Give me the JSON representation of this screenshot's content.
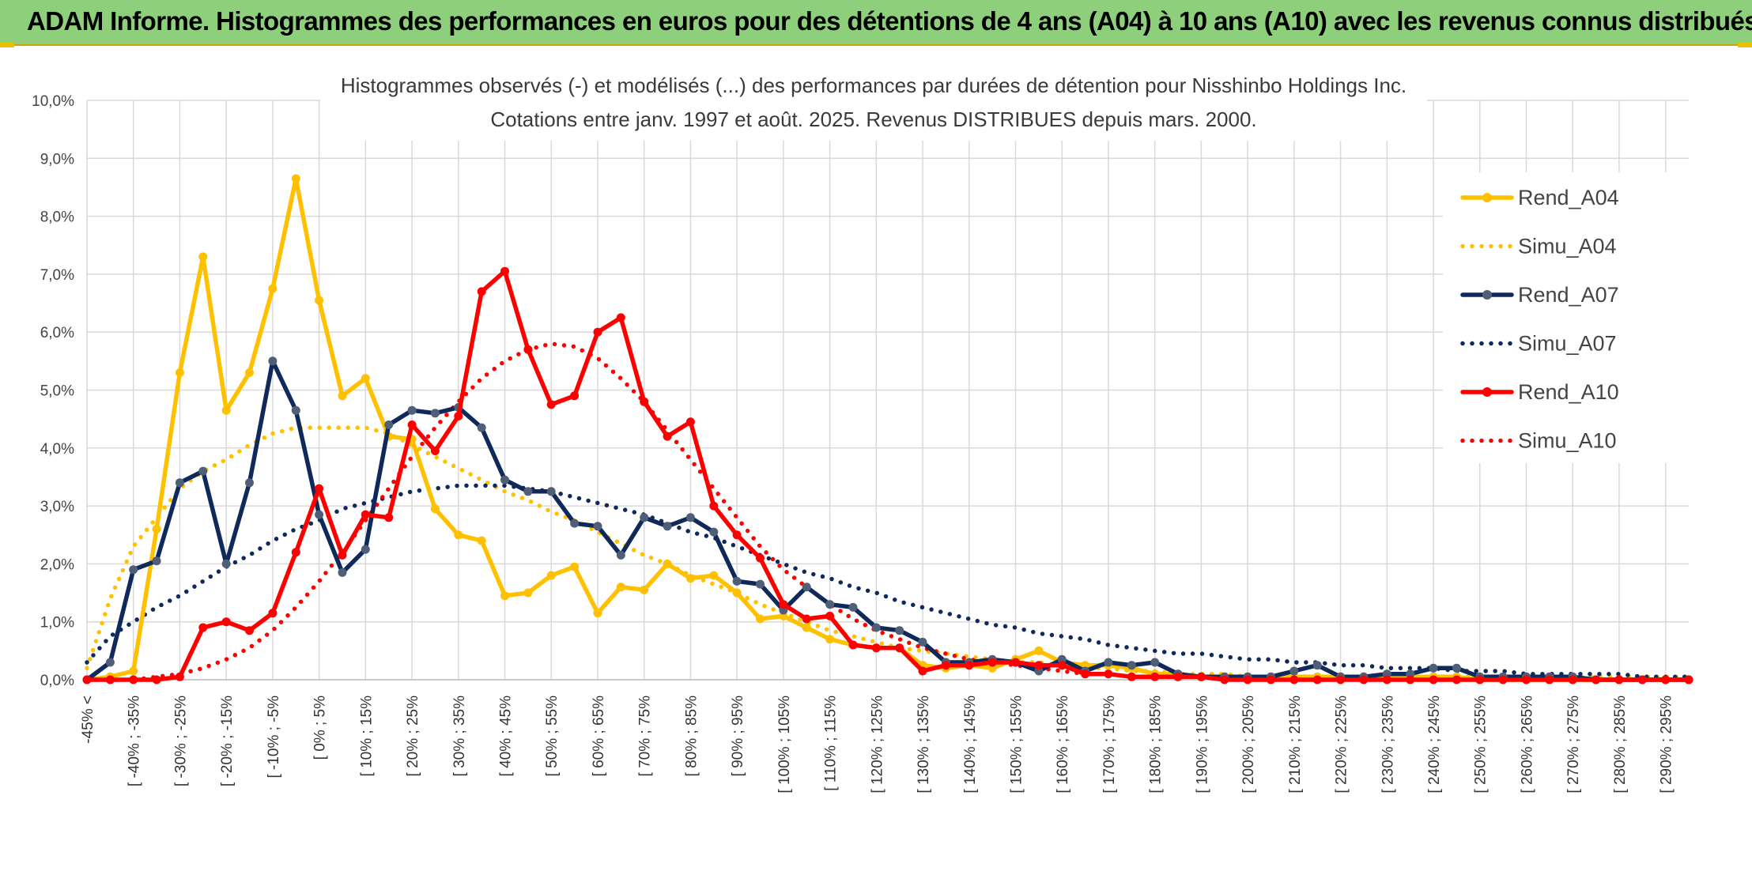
{
  "header": {
    "title": "ADAM Informe. Histogrammes des performances en euros pour des détentions de 4 ans (A04) à 10 ans (A10) avec les revenus connus distribués"
  },
  "colors": {
    "header_bg": "#8dcf7a",
    "rend_a04": "#ffc000",
    "rend_a07": "#0f2a5a",
    "rend_a07_marker": "#4f5f78",
    "rend_a10": "#ff0000",
    "grid": "#d9d9d9"
  },
  "chart_data": {
    "type": "line",
    "title": "Histogrammes observés (-) et modélisés (...) des performances par durées de détention pour Nisshinbo Holdings Inc.",
    "subtitle": "Cotations entre janv. 1997 et août. 2025. Revenus DISTRIBUES depuis mars. 2000.",
    "y_ticks": [
      "0,0%",
      "1,0%",
      "2,0%",
      "3,0%",
      "4,0%",
      "5,0%",
      "6,0%",
      "7,0%",
      "8,0%",
      "9,0%",
      "10,0%"
    ],
    "ylim": [
      0,
      10
    ],
    "grid": true,
    "legend_position": "right",
    "x_labels": [
      "-45% <",
      "[ -40% ; -35%",
      "[ -30% ; -25%",
      "[ -20% ; -15%",
      "[ -10% ; -5%",
      "[ 0% ; 5%",
      "[ 10% ; 15%",
      "[ 20% ; 25%",
      "[ 30% ; 35%",
      "[ 40% ; 45%",
      "[ 50% ; 55%",
      "[ 60% ; 65%",
      "[ 70% ; 75%",
      "[ 80% ; 85%",
      "[ 90% ; 95%",
      "[ 100% ; 105%",
      "[ 110% ; 115%",
      "[ 120% ; 125%",
      "[ 130% ; 135%",
      "[ 140% ; 145%",
      "[ 150% ; 155%",
      "[ 160% ; 165%",
      "[ 170% ; 175%",
      "[ 180% ; 185%",
      "[ 190% ; 195%",
      "[ 200% ; 205%",
      "[ 210% ; 215%",
      "[ 220% ; 225%",
      "[ 230% ; 235%",
      "[ 240% ; 245%",
      "[ 250% ; 255%",
      "[ 260% ; 265%",
      "[ 270% ; 275%",
      "[ 280% ; 285%",
      "[ 290% ; 295%"
    ],
    "series": [
      {
        "name": "Rend_A04",
        "style": "solid",
        "marker": true,
        "color": "#ffc000",
        "values": [
          0,
          0.05,
          0.15,
          2.6,
          5.3,
          7.3,
          4.65,
          5.3,
          6.75,
          8.65,
          6.55,
          4.9,
          5.2,
          4.2,
          4.15,
          2.95,
          2.5,
          2.4,
          1.45,
          1.5,
          1.8,
          1.95,
          1.15,
          1.6,
          1.55,
          2.0,
          1.75,
          1.8,
          1.5,
          1.05,
          1.1,
          0.9,
          0.7,
          0.6,
          0.55,
          0.55,
          0.25,
          0.2,
          0.25,
          0.2,
          0.35,
          0.5,
          0.3,
          0.25,
          0.25,
          0.2,
          0.1,
          0.1,
          0.05,
          0.05,
          0.05,
          0.05,
          0.05,
          0.05,
          0.05,
          0.05,
          0.05,
          0.05,
          0.05,
          0.05,
          0,
          0,
          0,
          0,
          0,
          0,
          0,
          0,
          0,
          0
        ]
      },
      {
        "name": "Simu_A04",
        "style": "dotted",
        "marker": false,
        "color": "#ffc000",
        "values": [
          0.2,
          1.4,
          2.3,
          2.8,
          3.3,
          3.6,
          3.8,
          4.05,
          4.25,
          4.35,
          4.35,
          4.35,
          4.35,
          4.25,
          4.05,
          3.85,
          3.65,
          3.45,
          3.25,
          3.1,
          2.9,
          2.75,
          2.55,
          2.35,
          2.15,
          2.0,
          1.8,
          1.65,
          1.5,
          1.3,
          1.15,
          1.0,
          0.85,
          0.75,
          0.65,
          0.55,
          0.5,
          0.45,
          0.4,
          0.35,
          0.3,
          0.3,
          0.25,
          0.2,
          0.2,
          0.15,
          0.15,
          0.1,
          0.1,
          0.1,
          0.05,
          0.05,
          0.05,
          0.05,
          0.05,
          0.05,
          0.05,
          0.05,
          0.05,
          0.05,
          0.05,
          0.05,
          0.05,
          0.05,
          0.05,
          0.05,
          0.05,
          0.05,
          0.05,
          0.05
        ]
      },
      {
        "name": "Rend_A07",
        "style": "solid",
        "marker": true,
        "color": "#0f2a5a",
        "values": [
          0,
          0.3,
          1.9,
          2.05,
          3.4,
          3.6,
          2.0,
          3.4,
          5.5,
          4.65,
          2.85,
          1.85,
          2.25,
          4.4,
          4.65,
          4.6,
          4.7,
          4.35,
          3.45,
          3.25,
          3.25,
          2.7,
          2.65,
          2.15,
          2.8,
          2.65,
          2.8,
          2.55,
          1.7,
          1.65,
          1.2,
          1.6,
          1.3,
          1.25,
          0.9,
          0.85,
          0.65,
          0.3,
          0.3,
          0.35,
          0.3,
          0.15,
          0.35,
          0.15,
          0.3,
          0.25,
          0.3,
          0.1,
          0.05,
          0.05,
          0.05,
          0.05,
          0.15,
          0.25,
          0.05,
          0.05,
          0.1,
          0.1,
          0.2,
          0.2,
          0.05,
          0.05,
          0.05,
          0.05,
          0.05,
          0,
          0,
          0,
          0,
          0
        ]
      },
      {
        "name": "Simu_A07",
        "style": "dotted",
        "marker": false,
        "color": "#0f2a5a",
        "values": [
          0.3,
          0.75,
          1.0,
          1.25,
          1.45,
          1.7,
          1.95,
          2.15,
          2.4,
          2.6,
          2.75,
          2.95,
          3.05,
          3.15,
          3.25,
          3.3,
          3.35,
          3.35,
          3.35,
          3.3,
          3.25,
          3.15,
          3.05,
          2.95,
          2.85,
          2.7,
          2.55,
          2.45,
          2.3,
          2.15,
          2.0,
          1.85,
          1.75,
          1.6,
          1.5,
          1.35,
          1.25,
          1.15,
          1.05,
          0.95,
          0.9,
          0.8,
          0.75,
          0.7,
          0.6,
          0.55,
          0.5,
          0.45,
          0.45,
          0.4,
          0.35,
          0.35,
          0.3,
          0.3,
          0.25,
          0.25,
          0.2,
          0.2,
          0.2,
          0.15,
          0.15,
          0.15,
          0.1,
          0.1,
          0.1,
          0.1,
          0.1,
          0.05,
          0.05,
          0.05
        ]
      },
      {
        "name": "Rend_A10",
        "style": "solid",
        "marker": true,
        "color": "#ff0000",
        "values": [
          0,
          0,
          0,
          0,
          0.05,
          0.9,
          1.0,
          0.85,
          1.15,
          2.2,
          3.3,
          2.15,
          2.85,
          2.8,
          4.4,
          3.95,
          4.55,
          6.7,
          7.05,
          5.7,
          4.75,
          4.9,
          6.0,
          6.25,
          4.8,
          4.2,
          4.45,
          3.0,
          2.5,
          2.1,
          1.3,
          1.05,
          1.1,
          0.6,
          0.55,
          0.55,
          0.15,
          0.25,
          0.25,
          0.3,
          0.3,
          0.25,
          0.25,
          0.1,
          0.1,
          0.05,
          0.05,
          0.05,
          0.05,
          0,
          0,
          0,
          0,
          0,
          0,
          0,
          0,
          0,
          0,
          0,
          0,
          0,
          0,
          0,
          0,
          0,
          0,
          0,
          0,
          0
        ]
      },
      {
        "name": "Simu_A10",
        "style": "dotted",
        "marker": false,
        "color": "#ff0000",
        "values": [
          0,
          0,
          0,
          0.05,
          0.1,
          0.2,
          0.35,
          0.55,
          0.85,
          1.25,
          1.7,
          2.2,
          2.75,
          3.3,
          3.85,
          4.35,
          4.8,
          5.2,
          5.5,
          5.7,
          5.8,
          5.75,
          5.55,
          5.2,
          4.8,
          4.3,
          3.8,
          3.3,
          2.8,
          2.3,
          1.9,
          1.6,
          1.3,
          1.05,
          0.85,
          0.7,
          0.55,
          0.45,
          0.35,
          0.3,
          0.25,
          0.2,
          0.15,
          0.1,
          0.1,
          0.05,
          0.05,
          0.05,
          0.05,
          0,
          0,
          0,
          0,
          0,
          0,
          0,
          0,
          0,
          0,
          0,
          0,
          0,
          0,
          0,
          0,
          0,
          0,
          0,
          0,
          0
        ]
      }
    ]
  }
}
